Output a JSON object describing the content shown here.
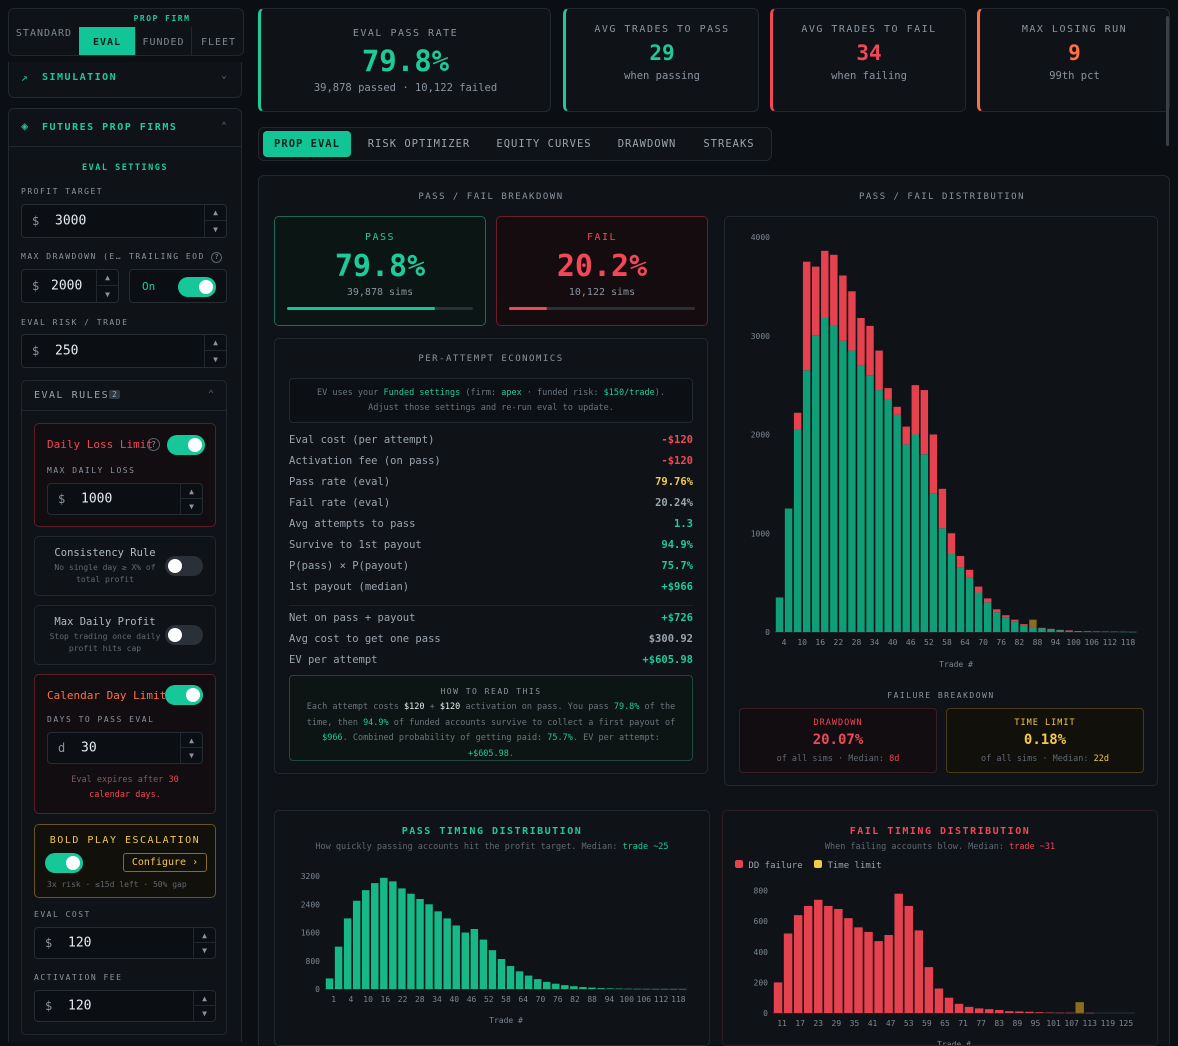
{
  "mode_tabs": {
    "standard": "STANDARD",
    "prop_firm_header": "PROP FIRM",
    "eval": "EVAL",
    "funded": "FUNDED",
    "fleet": "FLEET"
  },
  "sidebar": {
    "simulation": "SIMULATION",
    "futures": "FUTURES PROP FIRMS",
    "eval_settings": "EVAL SETTINGS",
    "profit_target": {
      "label": "PROFIT TARGET",
      "currency": "$",
      "value": "3000"
    },
    "max_drawdown": {
      "label": "MAX DRAWDOWN (E…",
      "currency": "$",
      "value": "2000"
    },
    "trailing": {
      "label": "TRAILING EOD",
      "value": "On"
    },
    "eval_risk": {
      "label": "EVAL RISK / TRADE",
      "currency": "$",
      "value": "250"
    },
    "eval_rules": {
      "label": "EVAL RULES",
      "count": "2"
    },
    "daily_loss": {
      "label": "Daily Loss Limit",
      "sub": "MAX DAILY LOSS",
      "currency": "$",
      "value": "1000"
    },
    "consistency": {
      "label": "Consistency Rule",
      "desc": "No single day ≥ X% of total profit"
    },
    "max_daily_profit": {
      "label": "Max Daily Profit",
      "desc": "Stop trading once daily profit hits cap"
    },
    "calendar": {
      "label": "Calendar Day Limit",
      "sub": "DAYS TO PASS EVAL",
      "prefix": "d",
      "value": "30",
      "note_pre": "Eval expires after ",
      "note_num": "30",
      "note_post": "calendar days."
    },
    "bold_play": {
      "label": "BOLD PLAY ESCALATION",
      "configure": "Configure ›",
      "desc": "3x risk · ≤15d left · 50% gap"
    },
    "eval_cost": {
      "label": "EVAL COST",
      "currency": "$",
      "value": "120"
    },
    "activation_fee": {
      "label": "ACTIVATION FEE",
      "currency": "$",
      "value": "120"
    }
  },
  "stats": [
    {
      "label": "EVAL PASS RATE",
      "value": "79.8%",
      "sub": "39,878 passed · 10,122 failed",
      "color": "#1ec99a"
    },
    {
      "label": "AVG TRADES TO PASS",
      "value": "29",
      "sub": "when passing",
      "color": "#1ec99a"
    },
    {
      "label": "AVG TRADES TO FAIL",
      "value": "34",
      "sub": "when failing",
      "color": "#f04858"
    },
    {
      "label": "MAX LOSING RUN",
      "value": "9",
      "sub": "99th pct",
      "color": "#ff7043"
    }
  ],
  "tabs": [
    "PROP EVAL",
    "RISK OPTIMIZER",
    "EQUITY CURVES",
    "DRAWDOWN",
    "STREAKS"
  ],
  "breakdown": {
    "title": "PASS / FAIL BREAKDOWN",
    "pass": {
      "label": "PASS",
      "value": "79.8%",
      "sub": "39,878 sims",
      "fraction": 0.798
    },
    "fail": {
      "label": "FAIL",
      "value": "20.2%",
      "sub": "10,122 sims",
      "fraction": 0.202
    }
  },
  "economics": {
    "title": "PER-ATTEMPT ECONOMICS",
    "note": {
      "p1": "EV uses your ",
      "funded": "Funded settings",
      "p2": " (firm: ",
      "firm": "apex",
      "p3": " · funded risk: ",
      "risk": "$150/trade",
      "p4": ").",
      "line2": "Adjust those settings and re-run eval to update."
    },
    "rows": [
      {
        "k": "Eval cost (per attempt)",
        "v": "-$120",
        "c": "red"
      },
      {
        "k": "Activation fee (on pass)",
        "v": "-$120",
        "c": "red"
      },
      {
        "k": "Pass rate (eval)",
        "v": "79.76%",
        "c": "yellow"
      },
      {
        "k": "Fail rate (eval)",
        "v": "20.24%",
        "c": "muted"
      },
      {
        "k": "Avg attempts to pass",
        "v": "1.3",
        "c": "green"
      },
      {
        "k": "Survive to 1st payout",
        "v": "94.9%",
        "c": "green"
      },
      {
        "k": "P(pass) × P(payout)",
        "v": "75.7%",
        "c": "green"
      },
      {
        "k": "1st payout (median)",
        "v": "+$966",
        "c": "green"
      }
    ],
    "rows2": [
      {
        "k": "Net on pass + payout",
        "v": "+$726",
        "c": "green"
      },
      {
        "k": "Avg cost to get one pass",
        "v": "$300.92",
        "c": "muted"
      },
      {
        "k": "EV per attempt",
        "v": "+$605.98",
        "c": "green"
      }
    ],
    "how": {
      "title": "HOW TO READ THIS",
      "t1": "Each attempt costs ",
      "a1": "$120",
      "t2": " + ",
      "a2": "$120",
      "t3": " activation on pass. You pass ",
      "a3": "79.8%",
      "t4": " of the time, then ",
      "a4": "94.9%",
      "t5": " of funded accounts survive to collect a first payout of ",
      "a5": "$966",
      "t6": ". Combined probability of getting paid: ",
      "a6": "75.7%",
      "t7": ". EV per attempt: ",
      "a7": "+$605.98",
      "t8": "."
    }
  },
  "distribution_title": "PASS / FAIL DISTRIBUTION",
  "failure": {
    "title": "FAILURE BREAKDOWN",
    "drawdown": {
      "label": "DRAWDOWN",
      "value": "20.07%",
      "sub": "of all sims · Median: ",
      "median": "8d"
    },
    "time": {
      "label": "TIME LIMIT",
      "value": "0.18%",
      "sub": "of all sims · Median: ",
      "median": "22d"
    }
  },
  "pass_timing": {
    "title": "PASS TIMING DISTRIBUTION",
    "sub": "How quickly passing accounts hit the profit target. Median: ",
    "median": "trade ~25"
  },
  "fail_timing": {
    "title": "FAIL TIMING DISTRIBUTION",
    "sub": "When failing accounts blow. Median: ",
    "median": "trade ~31",
    "legend_dd": "DD failure",
    "legend_time": "Time limit"
  },
  "chart_data": [
    {
      "type": "bar",
      "title": "PASS / FAIL DISTRIBUTION",
      "xlabel": "Trade #",
      "ylim": [
        0,
        4000
      ],
      "yticks": [
        0,
        1000,
        2000,
        3000,
        4000
      ],
      "xticks": [
        "4",
        "10",
        "16",
        "22",
        "28",
        "34",
        "40",
        "46",
        "52",
        "58",
        "64",
        "70",
        "76",
        "82",
        "88",
        "94",
        "100",
        "106",
        "112",
        "118"
      ],
      "x": [
        1,
        4,
        7,
        10,
        13,
        16,
        19,
        22,
        25,
        28,
        31,
        34,
        37,
        40,
        43,
        46,
        49,
        52,
        55,
        58,
        61,
        64,
        67,
        70,
        73,
        76,
        79,
        82,
        85,
        88,
        91,
        94,
        97,
        100,
        103,
        106,
        109,
        112,
        115,
        118
      ],
      "series": [
        {
          "name": "pass",
          "color": "#0f9e78",
          "values": [
            350,
            1250,
            2050,
            2650,
            3000,
            3180,
            3100,
            2950,
            2850,
            2700,
            2600,
            2450,
            2350,
            2200,
            1900,
            2000,
            1800,
            1400,
            1050,
            800,
            650,
            550,
            400,
            300,
            200,
            150,
            110,
            70,
            50,
            40,
            30,
            20,
            15,
            10,
            8,
            6,
            5,
            4,
            3,
            2
          ]
        },
        {
          "name": "fail",
          "color": "#e5414f",
          "values": [
            0,
            0,
            170,
            1100,
            700,
            680,
            720,
            660,
            600,
            480,
            500,
            400,
            120,
            80,
            180,
            500,
            650,
            600,
            400,
            200,
            120,
            80,
            60,
            40,
            30,
            20,
            15,
            10,
            5,
            2,
            2,
            2,
            2,
            0,
            0,
            0,
            0,
            0,
            0,
            0
          ]
        },
        {
          "name": "time",
          "color": "#8a6d1e",
          "values": [
            0,
            0,
            0,
            0,
            0,
            0,
            0,
            0,
            0,
            0,
            0,
            0,
            0,
            0,
            0,
            0,
            0,
            0,
            0,
            0,
            0,
            0,
            0,
            0,
            0,
            0,
            0,
            0,
            70,
            0,
            0,
            0,
            0,
            0,
            0,
            0,
            0,
            0,
            0,
            0
          ]
        }
      ]
    },
    {
      "type": "bar",
      "title": "PASS TIMING DISTRIBUTION",
      "xlabel": "Trade #",
      "ylim": [
        0,
        3400
      ],
      "yticks": [
        0,
        800,
        1600,
        2400,
        3200
      ],
      "xticks": [
        "1",
        "4",
        "10",
        "16",
        "22",
        "28",
        "34",
        "40",
        "46",
        "52",
        "58",
        "64",
        "70",
        "76",
        "82",
        "88",
        "94",
        "100",
        "106",
        "112",
        "118"
      ],
      "series": [
        {
          "name": "pass",
          "color": "#17b887",
          "values": [
            300,
            1200,
            2000,
            2500,
            2800,
            3000,
            3150,
            3050,
            2850,
            2700,
            2550,
            2400,
            2200,
            2000,
            1800,
            1600,
            1700,
            1400,
            1100,
            850,
            650,
            500,
            380,
            280,
            200,
            150,
            110,
            80,
            55,
            40,
            25,
            18,
            12,
            8,
            5,
            4,
            3,
            2,
            1,
            1
          ]
        }
      ]
    },
    {
      "type": "bar",
      "title": "FAIL TIMING DISTRIBUTION",
      "xlabel": "Trade #",
      "ylim": [
        0,
        850
      ],
      "yticks": [
        0,
        200,
        400,
        600,
        800
      ],
      "xticks": [
        "11",
        "17",
        "23",
        "29",
        "35",
        "41",
        "47",
        "53",
        "59",
        "65",
        "71",
        "77",
        "83",
        "89",
        "95",
        "101",
        "107",
        "113",
        "119",
        "125"
      ],
      "series": [
        {
          "name": "DD failure",
          "color": "#e5414f",
          "values": [
            200,
            520,
            640,
            700,
            740,
            700,
            680,
            620,
            560,
            530,
            470,
            510,
            780,
            700,
            540,
            300,
            160,
            100,
            60,
            40,
            30,
            25,
            20,
            12,
            10,
            8,
            5,
            3,
            2,
            2,
            1,
            1,
            0,
            0,
            0,
            0
          ]
        },
        {
          "name": "Time limit",
          "color": "#8a6d1e",
          "values": [
            0,
            0,
            0,
            0,
            0,
            0,
            0,
            0,
            0,
            0,
            0,
            0,
            0,
            0,
            0,
            0,
            0,
            0,
            0,
            0,
            0,
            0,
            0,
            0,
            0,
            0,
            0,
            0,
            0,
            0,
            70,
            0,
            0,
            0,
            0,
            0
          ]
        }
      ]
    }
  ]
}
